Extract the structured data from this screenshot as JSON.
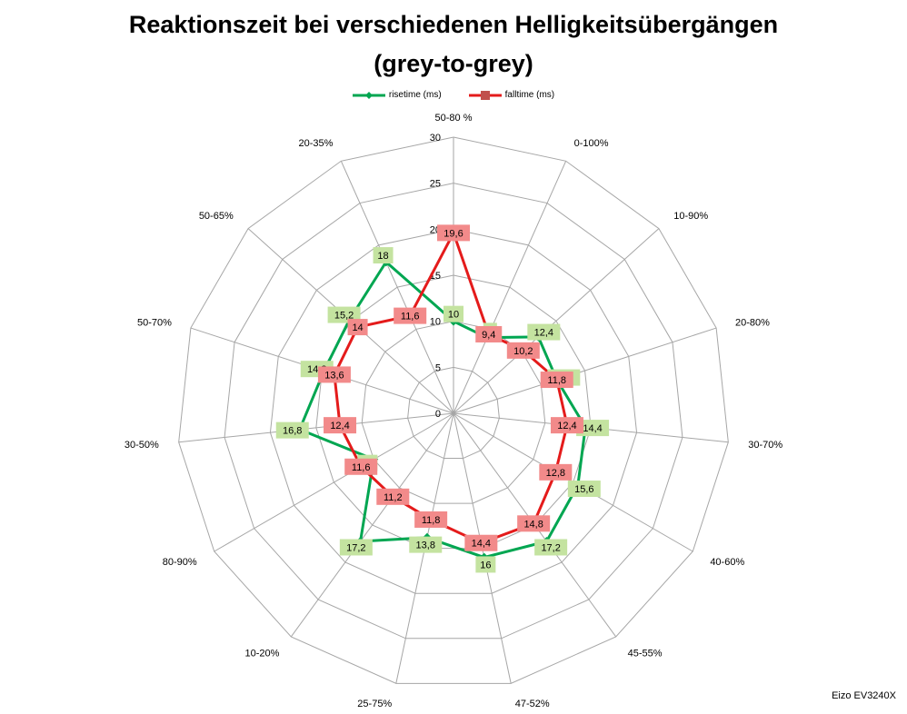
{
  "title_line1": "Reaktionszeit bei verschiedenen Helligkeitsübergängen",
  "title_line2": "(grey-to-grey)",
  "watermark": "Eizo EV3240X",
  "colors": {
    "rise": "#00a651",
    "fall": "#e41b1b",
    "rise_label_bg": "#c4e3a0",
    "fall_label_bg": "#f28a8a",
    "grid": "#a6a6a6"
  },
  "chart_data": {
    "type": "radar",
    "categories": [
      "50-80 %",
      "0-100%",
      "10-90%",
      "20-80%",
      "30-70%",
      "40-60%",
      "45-55%",
      "47-52%",
      "25-75%",
      "10-20%",
      "80-90%",
      "30-50%",
      "50-70%",
      "50-65%",
      "20-35%"
    ],
    "rlim": [
      0,
      30
    ],
    "ticks": [
      "0",
      "5",
      "10",
      "15",
      "20",
      "25",
      "30"
    ],
    "series": [
      {
        "name": "risetime (ms)",
        "values": [
          "10",
          "9",
          "12,4",
          "11,8",
          "14,4",
          "15,6",
          "17,2",
          "16",
          "13,8",
          "17,2",
          "10",
          "16,8",
          "14,8",
          "15,2",
          "18"
        ]
      },
      {
        "name": "falltime (ms)",
        "values": [
          "19,6",
          "9,4",
          "10,2",
          "11,8",
          "12,4",
          "12,8",
          "14,8",
          "14,4",
          "11,8",
          "11,2",
          "11,6",
          "12,4",
          "13,6",
          "14",
          "11,6"
        ]
      }
    ]
  }
}
